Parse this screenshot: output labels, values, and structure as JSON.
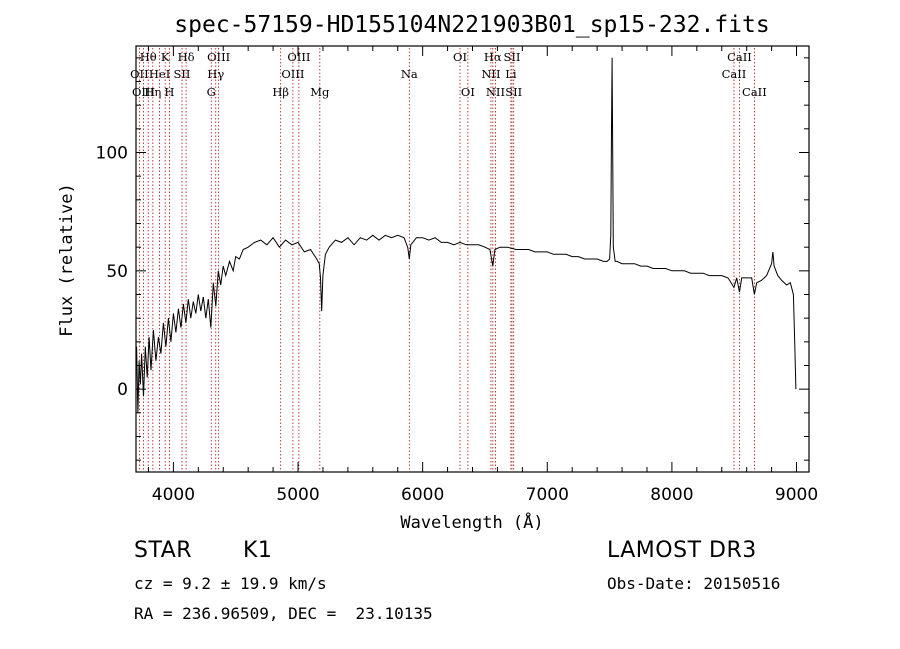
{
  "chart_data": {
    "type": "line",
    "title": "spec-57159-HD155104N221903B01_sp15-232.fits",
    "xlabel": "Wavelength (Å)",
    "ylabel": "Flux (relative)",
    "xlim": [
      3700,
      9100
    ],
    "ylim": [
      -35,
      145
    ],
    "xticks": [
      4000,
      5000,
      6000,
      7000,
      8000,
      9000
    ],
    "yticks": [
      0,
      50,
      100
    ],
    "x_tick_labels": [
      "4000",
      "5000",
      "6000",
      "7000",
      "8000",
      "9000"
    ],
    "y_tick_labels": [
      "0",
      "50",
      "100"
    ],
    "series": [
      {
        "name": "spectrum",
        "points": [
          [
            3705,
            18
          ],
          [
            3715,
            -10
          ],
          [
            3725,
            12
          ],
          [
            3735,
            2
          ],
          [
            3745,
            15
          ],
          [
            3760,
            -3
          ],
          [
            3775,
            18
          ],
          [
            3790,
            5
          ],
          [
            3805,
            22
          ],
          [
            3820,
            8
          ],
          [
            3840,
            25
          ],
          [
            3860,
            12
          ],
          [
            3880,
            22
          ],
          [
            3900,
            15
          ],
          [
            3920,
            28
          ],
          [
            3940,
            18
          ],
          [
            3960,
            30
          ],
          [
            3980,
            20
          ],
          [
            4000,
            32
          ],
          [
            4020,
            24
          ],
          [
            4040,
            34
          ],
          [
            4060,
            26
          ],
          [
            4080,
            36
          ],
          [
            4100,
            28
          ],
          [
            4120,
            38
          ],
          [
            4140,
            30
          ],
          [
            4160,
            37
          ],
          [
            4180,
            32
          ],
          [
            4200,
            40
          ],
          [
            4220,
            33
          ],
          [
            4240,
            39
          ],
          [
            4260,
            30
          ],
          [
            4280,
            38
          ],
          [
            4300,
            26
          ],
          [
            4320,
            45
          ],
          [
            4340,
            35
          ],
          [
            4360,
            50
          ],
          [
            4380,
            44
          ],
          [
            4400,
            52
          ],
          [
            4420,
            48
          ],
          [
            4450,
            54
          ],
          [
            4480,
            50
          ],
          [
            4500,
            56
          ],
          [
            4530,
            55
          ],
          [
            4560,
            59
          ],
          [
            4600,
            60
          ],
          [
            4650,
            62
          ],
          [
            4700,
            63
          ],
          [
            4750,
            61
          ],
          [
            4800,
            64
          ],
          [
            4850,
            60
          ],
          [
            4900,
            63
          ],
          [
            4950,
            61
          ],
          [
            5000,
            62
          ],
          [
            5050,
            58
          ],
          [
            5100,
            59
          ],
          [
            5150,
            55
          ],
          [
            5170,
            53
          ],
          [
            5180,
            47
          ],
          [
            5190,
            33
          ],
          [
            5200,
            48
          ],
          [
            5220,
            57
          ],
          [
            5250,
            60
          ],
          [
            5300,
            63
          ],
          [
            5350,
            62
          ],
          [
            5400,
            64
          ],
          [
            5450,
            61
          ],
          [
            5500,
            64
          ],
          [
            5550,
            63
          ],
          [
            5600,
            65
          ],
          [
            5650,
            63
          ],
          [
            5700,
            65
          ],
          [
            5750,
            64
          ],
          [
            5800,
            65
          ],
          [
            5850,
            64
          ],
          [
            5880,
            60
          ],
          [
            5893,
            55
          ],
          [
            5905,
            61
          ],
          [
            5950,
            64
          ],
          [
            6000,
            64
          ],
          [
            6050,
            63
          ],
          [
            6100,
            64
          ],
          [
            6150,
            62
          ],
          [
            6200,
            62
          ],
          [
            6250,
            61
          ],
          [
            6300,
            62
          ],
          [
            6350,
            61
          ],
          [
            6400,
            61
          ],
          [
            6450,
            61
          ],
          [
            6500,
            60
          ],
          [
            6540,
            59
          ],
          [
            6563,
            52
          ],
          [
            6580,
            59
          ],
          [
            6620,
            60
          ],
          [
            6680,
            60
          ],
          [
            6750,
            59
          ],
          [
            6800,
            59
          ],
          [
            6850,
            59
          ],
          [
            6900,
            58
          ],
          [
            6950,
            58
          ],
          [
            7000,
            58
          ],
          [
            7050,
            57
          ],
          [
            7100,
            57
          ],
          [
            7150,
            57
          ],
          [
            7200,
            56
          ],
          [
            7250,
            56
          ],
          [
            7300,
            55
          ],
          [
            7350,
            55
          ],
          [
            7400,
            55
          ],
          [
            7450,
            54
          ],
          [
            7480,
            54
          ],
          [
            7500,
            55
          ],
          [
            7510,
            65
          ],
          [
            7515,
            110
          ],
          [
            7520,
            140
          ],
          [
            7525,
            100
          ],
          [
            7530,
            60
          ],
          [
            7545,
            54
          ],
          [
            7560,
            54
          ],
          [
            7600,
            53
          ],
          [
            7650,
            53
          ],
          [
            7700,
            53
          ],
          [
            7750,
            52
          ],
          [
            7800,
            52
          ],
          [
            7850,
            51
          ],
          [
            7900,
            51
          ],
          [
            7950,
            51
          ],
          [
            8000,
            50
          ],
          [
            8050,
            50
          ],
          [
            8100,
            50
          ],
          [
            8150,
            49
          ],
          [
            8200,
            49
          ],
          [
            8250,
            49
          ],
          [
            8300,
            48
          ],
          [
            8350,
            48
          ],
          [
            8400,
            48
          ],
          [
            8450,
            47
          ],
          [
            8498,
            43
          ],
          [
            8520,
            47
          ],
          [
            8542,
            41
          ],
          [
            8560,
            47
          ],
          [
            8600,
            47
          ],
          [
            8640,
            47
          ],
          [
            8662,
            40
          ],
          [
            8680,
            45
          ],
          [
            8720,
            46
          ],
          [
            8760,
            48
          ],
          [
            8800,
            53
          ],
          [
            8810,
            58
          ],
          [
            8820,
            52
          ],
          [
            8850,
            48
          ],
          [
            8880,
            46
          ],
          [
            8920,
            44
          ],
          [
            8950,
            45
          ],
          [
            8975,
            40
          ],
          [
            8985,
            20
          ],
          [
            8995,
            0
          ]
        ]
      }
    ],
    "line_markers": [
      {
        "label": "Hθ",
        "x": 3798,
        "row": 1
      },
      {
        "label": "OII",
        "x": 3727,
        "row": 2
      },
      {
        "label": "OIII",
        "x": 3760,
        "row": 3
      },
      {
        "label": "Hη",
        "x": 3835,
        "row": 3
      },
      {
        "label": "HeI",
        "x": 3889,
        "row": 2
      },
      {
        "label": "K",
        "x": 3934,
        "row": 1
      },
      {
        "label": "H",
        "x": 3968,
        "row": 3
      },
      {
        "label": "SII",
        "x": 4069,
        "row": 2
      },
      {
        "label": "Hδ",
        "x": 4102,
        "row": 1
      },
      {
        "label": "OIII",
        "x": 4363,
        "row": 1
      },
      {
        "label": "Hγ",
        "x": 4340,
        "row": 2
      },
      {
        "label": "G",
        "x": 4304,
        "row": 3
      },
      {
        "label": "Hβ",
        "x": 4861,
        "row": 3
      },
      {
        "label": "OIII",
        "x": 5007,
        "row": 1
      },
      {
        "label": "OIII",
        "x": 4959,
        "row": 2
      },
      {
        "label": "Mg",
        "x": 5175,
        "row": 3
      },
      {
        "label": "Na",
        "x": 5893,
        "row": 2
      },
      {
        "label": "OI",
        "x": 6300,
        "row": 1
      },
      {
        "label": "OI",
        "x": 6363,
        "row": 3
      },
      {
        "label": "Hα",
        "x": 6563,
        "row": 1
      },
      {
        "label": "NII",
        "x": 6548,
        "row": 2
      },
      {
        "label": "NII",
        "x": 6584,
        "row": 3
      },
      {
        "label": "SII",
        "x": 6717,
        "row": 1
      },
      {
        "label": "Li",
        "x": 6708,
        "row": 2
      },
      {
        "label": "SII",
        "x": 6731,
        "row": 3
      },
      {
        "label": "CaII",
        "x": 8542,
        "row": 1
      },
      {
        "label": "CaII",
        "x": 8498,
        "row": 2
      },
      {
        "label": "CaII",
        "x": 8662,
        "row": 3
      }
    ]
  },
  "info": {
    "object_type": "STAR",
    "subclass": "K1",
    "survey": "LAMOST DR3",
    "redshift": "cz = 9.2 ± 19.9 km/s",
    "obs_date": "Obs-Date: 20150516",
    "coords": "RA = 236.96509, DEC =  23.10135"
  },
  "colors": {
    "line_marker": "#aa1111",
    "spectrum": "#000000"
  }
}
